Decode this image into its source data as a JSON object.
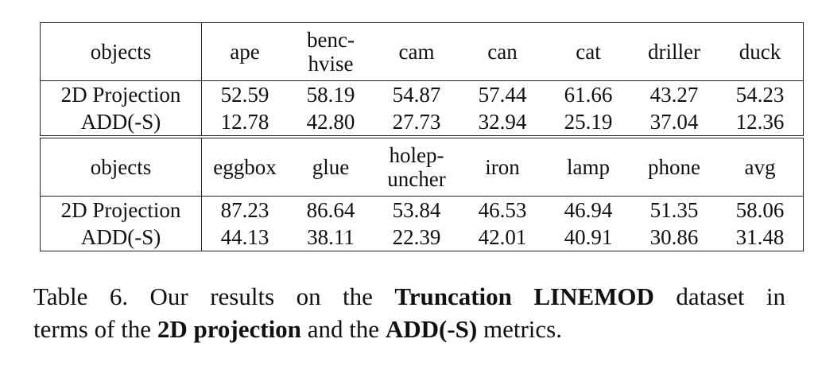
{
  "table": {
    "blocks": [
      {
        "header": [
          [
            "objects"
          ],
          [
            "ape"
          ],
          [
            "benc-",
            "hvise"
          ],
          [
            "cam"
          ],
          [
            "can"
          ],
          [
            "cat"
          ],
          [
            "driller"
          ],
          [
            "duck"
          ]
        ],
        "rows": [
          [
            "2D Projection",
            "52.59",
            "58.19",
            "54.87",
            "57.44",
            "61.66",
            "43.27",
            "54.23"
          ],
          [
            "ADD(-S)",
            "12.78",
            "42.80",
            "27.73",
            "32.94",
            "25.19",
            "37.04",
            "12.36"
          ]
        ]
      },
      {
        "header": [
          [
            "objects"
          ],
          [
            "eggbox"
          ],
          [
            "glue"
          ],
          [
            "holep-",
            "uncher"
          ],
          [
            "iron"
          ],
          [
            "lamp"
          ],
          [
            "phone"
          ],
          [
            "avg"
          ]
        ],
        "rows": [
          [
            "2D Projection",
            "87.23",
            "86.64",
            "53.84",
            "46.53",
            "46.94",
            "51.35",
            "58.06"
          ],
          [
            "ADD(-S)",
            "44.13",
            "38.11",
            "22.39",
            "42.01",
            "40.91",
            "30.86",
            "31.48"
          ]
        ]
      }
    ]
  },
  "caption": {
    "lines": [
      [
        {
          "text": "Table 6. Our results on the ",
          "bold": false
        },
        {
          "text": "Truncation LINEMOD",
          "bold": true
        },
        {
          "text": " dataset in",
          "bold": false
        }
      ],
      [
        {
          "text": "terms of the ",
          "bold": false
        },
        {
          "text": "2D projection",
          "bold": true
        },
        {
          "text": " and the ",
          "bold": false
        },
        {
          "text": "ADD(-S)",
          "bold": true
        },
        {
          "text": " metrics.",
          "bold": false
        }
      ]
    ]
  }
}
